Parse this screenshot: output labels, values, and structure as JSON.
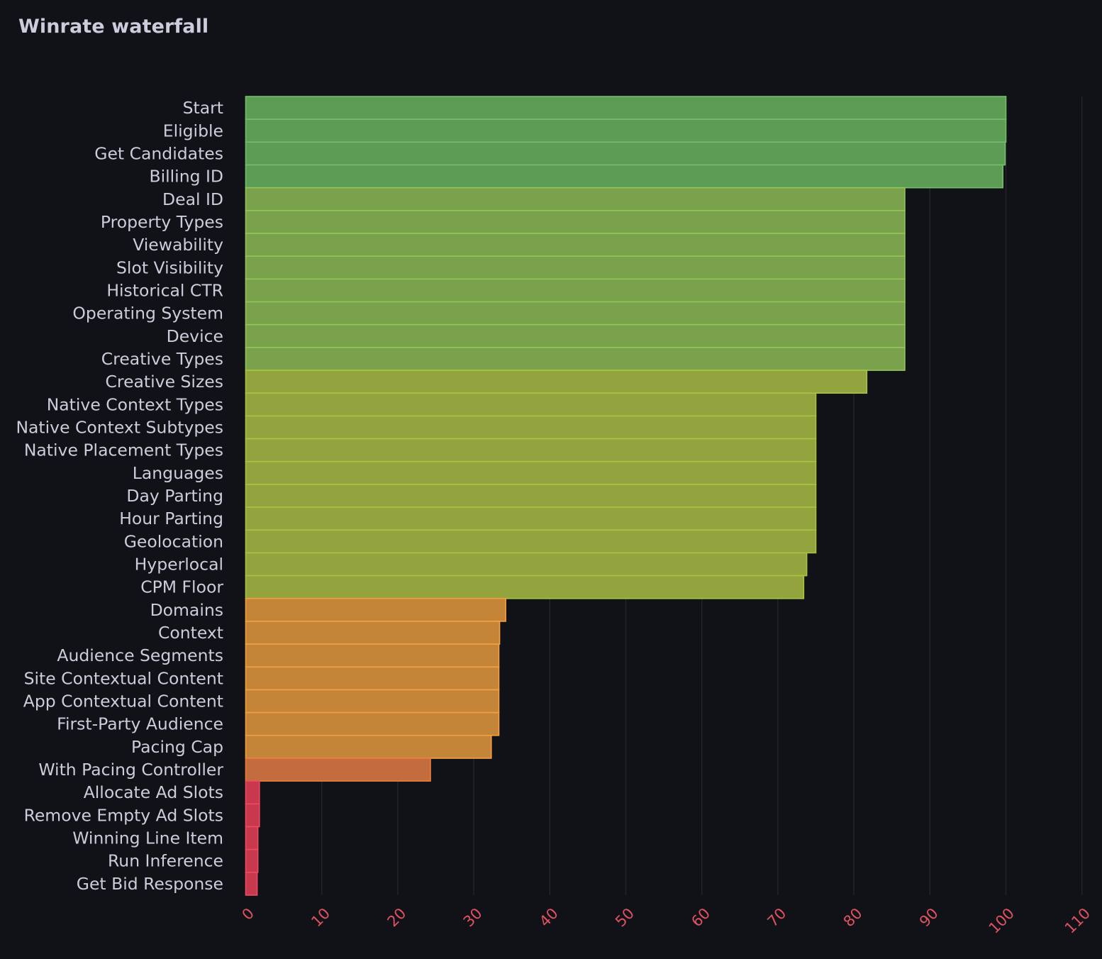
{
  "panel": {
    "title": "Winrate waterfall"
  },
  "chart_data": {
    "type": "bar",
    "orientation": "horizontal",
    "title": "Winrate waterfall",
    "xlabel": "",
    "ylabel": "",
    "xlim": [
      0,
      110
    ],
    "x_ticks": [
      0,
      10,
      20,
      30,
      40,
      50,
      60,
      70,
      80,
      90,
      100,
      110
    ],
    "grid": true,
    "legend": "none",
    "categories": [
      "Start",
      "Eligible",
      "Get Candidates",
      "Billing ID",
      "Deal ID",
      "Property Types",
      "Viewability",
      "Slot Visibility",
      "Historical CTR",
      "Operating System",
      "Device",
      "Creative Types",
      "Creative Sizes",
      "Native Context Types",
      "Native Context Subtypes",
      "Native Placement Types",
      "Languages",
      "Day Parting",
      "Hour Parting",
      "Geolocation",
      "Hyperlocal",
      "CPM Floor",
      "Domains",
      "Context",
      "Audience Segments",
      "Site Contextual Content",
      "App Contextual Content",
      "First-Party Audience",
      "Pacing Cap",
      "With Pacing Controller",
      "Allocate Ad Slots",
      "Remove Empty Ad Slots",
      "Winning Line Item",
      "Run Inference",
      "Get Bid Response"
    ],
    "values": [
      100,
      100,
      99.9,
      99.6,
      86.7,
      86.7,
      86.7,
      86.7,
      86.7,
      86.7,
      86.7,
      86.7,
      81.7,
      75,
      75,
      75,
      75,
      75,
      75,
      75,
      73.8,
      73.4,
      34.2,
      33.4,
      33.3,
      33.3,
      33.3,
      33.3,
      32.3,
      24.3,
      1.8,
      1.8,
      1.6,
      1.6,
      1.5
    ],
    "thresholds": [
      {
        "min": 0,
        "fill": "#c8394d",
        "stroke": "#ef4a61"
      },
      {
        "min": 20,
        "fill": "#c36d3f",
        "stroke": "#ec7d3d"
      },
      {
        "min": 30,
        "fill": "#c58538",
        "stroke": "#f5a03f"
      },
      {
        "min": 70,
        "fill": "#93a43f",
        "stroke": "#a8c442"
      },
      {
        "min": 85,
        "fill": "#7aa14b",
        "stroke": "#94c55a"
      },
      {
        "min": 90,
        "fill": "#5c9c55",
        "stroke": "#73bf69"
      }
    ]
  }
}
